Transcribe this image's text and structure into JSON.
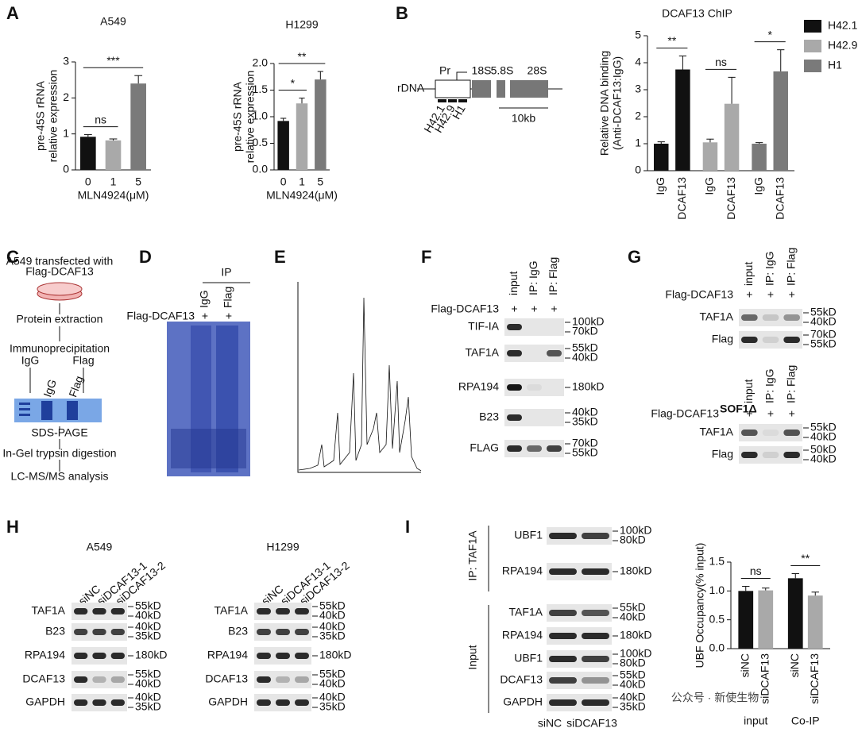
{
  "panel_letters": [
    "A",
    "B",
    "C",
    "D",
    "E",
    "F",
    "G",
    "H",
    "I"
  ],
  "chart_data": [
    {
      "type": "bar",
      "title": "A549",
      "ylabel": [
        "pre-45S rRNA",
        "relative expression"
      ],
      "xlabel": "MLN4924(μM)",
      "categories": [
        "0",
        "1",
        "5"
      ],
      "values": [
        0.92,
        0.82,
        2.4
      ],
      "errors": [
        0.06,
        0.04,
        0.22
      ],
      "colors": [
        "#111111",
        "#a9a9a9",
        "#7a7a7a"
      ],
      "ylim": [
        0,
        3
      ],
      "yticks": [
        0,
        1,
        2,
        3
      ],
      "annotations": [
        "ns",
        "***"
      ]
    },
    {
      "type": "bar",
      "title": "H1299",
      "ylabel": [
        "pre-45S rRNA",
        "relative expression"
      ],
      "xlabel": "MLN4924(μM)",
      "categories": [
        "0",
        "1",
        "5"
      ],
      "values": [
        0.92,
        1.25,
        1.7
      ],
      "errors": [
        0.05,
        0.1,
        0.15
      ],
      "colors": [
        "#111111",
        "#a9a9a9",
        "#7a7a7a"
      ],
      "ylim": [
        0,
        2
      ],
      "yticks": [
        {
          "value": 0,
          "label": "0.0"
        },
        0.5,
        {
          "value": 1,
          "label": "1.0"
        },
        1.5,
        {
          "value": 2,
          "label": "2.0"
        }
      ],
      "annotations": [
        "*",
        "**"
      ]
    },
    {
      "type": "bar",
      "title": "DCAF13 ChIP",
      "ylabel": [
        "Relative DNA binding",
        "(Anti-DCAF13:IgG)"
      ],
      "categories": [
        "IgG",
        "DCAF13"
      ],
      "series": [
        {
          "name": "H42.1",
          "color": "#111111",
          "values": [
            1.0,
            3.75
          ],
          "errors": [
            0.07,
            0.5
          ]
        },
        {
          "name": "H42.9",
          "color": "#a9a9a9",
          "values": [
            1.05,
            2.48
          ],
          "errors": [
            0.12,
            0.98
          ]
        },
        {
          "name": "H1",
          "color": "#7a7a7a",
          "values": [
            1.0,
            3.68
          ],
          "errors": [
            0.04,
            0.8
          ]
        }
      ],
      "ylim": [
        0,
        5
      ],
      "yticks": [
        0,
        1,
        2,
        3,
        4,
        5
      ],
      "legend": "top-right",
      "annotations": [
        "**",
        "ns",
        "*"
      ]
    },
    {
      "type": "bar",
      "ylabel": [
        "UBF Occupancy(% input)"
      ],
      "categories": [
        "input",
        "Co-IP"
      ],
      "series": [
        {
          "name": "siNC",
          "color": "#111111",
          "values": [
            1.0,
            1.22
          ],
          "errors": [
            0.08,
            0.08
          ]
        },
        {
          "name": "siDCAF13",
          "color": "#a9a9a9",
          "values": [
            1.01,
            0.92
          ],
          "errors": [
            0.04,
            0.06
          ]
        }
      ],
      "ylim": [
        0,
        1.5
      ],
      "yticks": [
        {
          "value": 0,
          "label": "0.0"
        },
        0.5,
        {
          "value": 1,
          "label": "1.0"
        },
        1.5
      ],
      "annotations": [
        "ns",
        "**"
      ]
    }
  ],
  "rdna": {
    "label": "rDNA",
    "pr": "Pr",
    "regions": [
      "18S",
      "5.8S",
      "28S"
    ],
    "primers": [
      "H42.1",
      "H42.9",
      "H1"
    ],
    "scale": "10kb"
  },
  "workflow": {
    "steps": [
      "A549 transfected with",
      "Flag-DCAF13",
      "Protein extraction",
      "Immunoprecipitation",
      "SDS-PAGE",
      "In-Gel trypsin digestion",
      "LC-MS/MS analysis"
    ],
    "arms": [
      "IgG",
      "Flag"
    ]
  },
  "gel_D": {
    "header": "IP",
    "lanes": [
      "IgG",
      "Flag"
    ],
    "condition": "Flag-DCAF13",
    "signs": [
      "+",
      "+"
    ]
  },
  "blot_F": {
    "lanes": [
      "input",
      "IP: IgG",
      "IP: Flag"
    ],
    "condition": "Flag-DCAF13",
    "signs": [
      "+",
      "+",
      "+"
    ],
    "rows": [
      {
        "name": "TIF-IA",
        "markers": [
          "100kD",
          "70kD"
        ]
      },
      {
        "name": "TAF1A",
        "markers": [
          "55kD",
          "40kD"
        ]
      },
      {
        "name": "RPA194",
        "markers": [
          "180kD"
        ]
      },
      {
        "name": "B23",
        "markers": [
          "40kD",
          "35kD"
        ]
      },
      {
        "name": "FLAG",
        "markers": [
          "70kD",
          "55kD"
        ]
      }
    ]
  },
  "blot_G": {
    "top": {
      "lanes": [
        "input",
        "IP: IgG",
        "IP: Flag"
      ],
      "condition": "Flag-DCAF13",
      "signs": [
        "+",
        "+",
        "+"
      ],
      "rows": [
        {
          "name": "TAF1A",
          "markers": [
            "55kD",
            "40kD"
          ]
        },
        {
          "name": "Flag",
          "markers": [
            "70kD",
            "55kD"
          ]
        }
      ]
    },
    "bottom": {
      "lanes": [
        "input",
        "IP: IgG",
        "IP: Flag"
      ],
      "condition": "Flag-DCAF13",
      "condition_sup": "SOF1Δ",
      "signs": [
        "+",
        "+",
        "+"
      ],
      "rows": [
        {
          "name": "TAF1A",
          "markers": [
            "55kD",
            "40kD"
          ]
        },
        {
          "name": "Flag",
          "markers": [
            "50kD",
            "40kD"
          ]
        }
      ]
    }
  },
  "blot_H": [
    {
      "title": "A549",
      "lanes": [
        "siNC",
        "siDCAF13-1",
        "siDCAF13-2"
      ],
      "rows": [
        {
          "name": "TAF1A",
          "markers": [
            "55kD",
            "40kD"
          ]
        },
        {
          "name": "B23",
          "markers": [
            "40kD",
            "35kD"
          ]
        },
        {
          "name": "RPA194",
          "markers": [
            "180kD"
          ]
        },
        {
          "name": "DCAF13",
          "markers": [
            "55kD",
            "40kD"
          ]
        },
        {
          "name": "GAPDH",
          "markers": [
            "40kD",
            "35kD"
          ]
        }
      ]
    },
    {
      "title": "H1299",
      "lanes": [
        "siNC",
        "siDCAF13-1",
        "siDCAF13-2"
      ],
      "rows": [
        {
          "name": "TAF1A",
          "markers": [
            "55kD",
            "40kD"
          ]
        },
        {
          "name": "B23",
          "markers": [
            "40kD",
            "35kD"
          ]
        },
        {
          "name": "RPA194",
          "markers": [
            "180kD"
          ]
        },
        {
          "name": "DCAF13",
          "markers": [
            "55kD",
            "40kD"
          ]
        },
        {
          "name": "GAPDH",
          "markers": [
            "40kD",
            "35kD"
          ]
        }
      ]
    }
  ],
  "blot_I": {
    "lanes": [
      "siNC",
      "siDCAF13"
    ],
    "ip": {
      "label": "IP: TAF1A",
      "rows": [
        {
          "name": "UBF1",
          "markers": [
            "100kD",
            "80kD"
          ]
        },
        {
          "name": "RPA194",
          "markers": [
            "180kD"
          ]
        }
      ]
    },
    "input": {
      "label": "Input",
      "rows": [
        {
          "name": "TAF1A",
          "markers": [
            "55kD",
            "40kD"
          ]
        },
        {
          "name": "RPA194",
          "markers": [
            "180kD"
          ]
        },
        {
          "name": "UBF1",
          "markers": [
            "100kD",
            "80kD"
          ]
        },
        {
          "name": "DCAF13",
          "markers": [
            "55kD",
            "40kD"
          ]
        },
        {
          "name": "GAPDH",
          "markers": [
            "40kD",
            "35kD"
          ]
        }
      ]
    }
  },
  "watermark": "公众号 · 新使生物"
}
